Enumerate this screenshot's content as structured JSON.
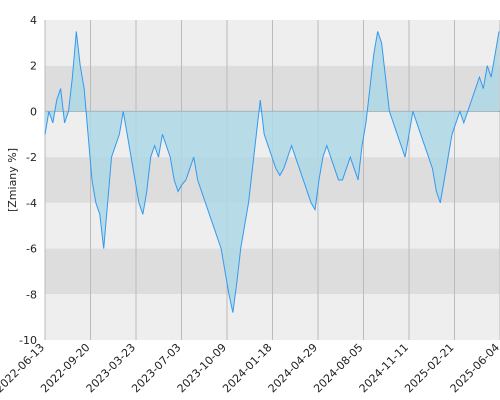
{
  "chart_data": {
    "type": "area",
    "title": "",
    "xlabel": "",
    "ylabel": "[Zmiany %]",
    "ylim": [
      -10,
      4
    ],
    "yticks": [
      4,
      2,
      0,
      -2,
      -4,
      -6,
      -8,
      -10
    ],
    "xtick_labels": [
      "2022-06-13",
      "2022-09-20",
      "2023-03-23",
      "2023-07-03",
      "2023-10-09",
      "2024-01-18",
      "2024-04-29",
      "2024-08-05",
      "2024-11-11",
      "2025-02-21",
      "2025-06-04"
    ],
    "grid": true,
    "line_color": "#3399ee",
    "fill_color": "#add8e6",
    "band_colors": [
      "#eeeeee",
      "#dddddd"
    ],
    "series": [
      {
        "values": [
          -1.0,
          0.0,
          -0.5,
          0.5,
          1.0,
          -0.5,
          0.0,
          1.5,
          3.5,
          2.0,
          1.0,
          -1.0,
          -3.0,
          -4.0,
          -4.5,
          -6.0,
          -4.0,
          -2.0,
          -1.5,
          -1.0,
          0.0,
          -1.0,
          -2.0,
          -3.0,
          -4.0,
          -4.5,
          -3.5,
          -2.0,
          -1.5,
          -2.0,
          -1.0,
          -1.5,
          -2.0,
          -3.0,
          -3.5,
          -3.2,
          -3.0,
          -2.5,
          -2.0,
          -3.0,
          -3.5,
          -4.0,
          -4.5,
          -5.0,
          -5.5,
          -6.0,
          -7.0,
          -8.0,
          -8.8,
          -7.5,
          -6.0,
          -5.0,
          -4.0,
          -2.5,
          -1.0,
          0.5,
          -1.0,
          -1.5,
          -2.0,
          -2.5,
          -2.8,
          -2.5,
          -2.0,
          -1.5,
          -2.0,
          -2.5,
          -3.0,
          -3.5,
          -4.0,
          -4.3,
          -3.0,
          -2.0,
          -1.5,
          -2.0,
          -2.5,
          -3.0,
          -3.0,
          -2.5,
          -2.0,
          -2.5,
          -3.0,
          -1.5,
          -0.5,
          1.0,
          2.5,
          3.5,
          3.0,
          1.5,
          0.0,
          -0.5,
          -1.0,
          -1.5,
          -2.0,
          -1.0,
          0.0,
          -0.5,
          -1.0,
          -1.5,
          -2.0,
          -2.5,
          -3.5,
          -4.0,
          -3.0,
          -2.0,
          -1.0,
          -0.5,
          0.0,
          -0.5,
          0.0,
          0.5,
          1.0,
          1.5,
          1.0,
          2.0,
          1.5,
          2.5,
          3.5
        ]
      }
    ]
  }
}
